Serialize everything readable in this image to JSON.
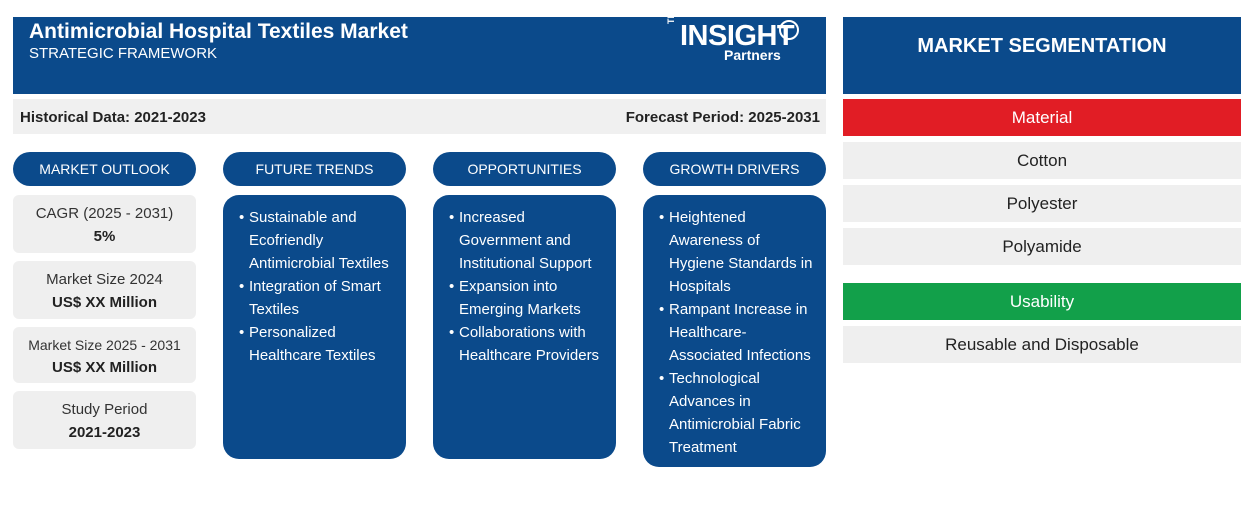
{
  "header": {
    "title": "Antimicrobial Hospital Textiles Market",
    "subtitle": "STRATEGIC FRAMEWORK",
    "logo": {
      "prefix": "The",
      "name": "INSIGHT",
      "suffix": "Partners"
    }
  },
  "period": {
    "historical": "Historical Data: 2021-2023",
    "forecast": "Forecast Period: 2025-2031"
  },
  "columns": {
    "outlook": {
      "label": "MARKET OUTLOOK",
      "stats": [
        {
          "label": "CAGR (2025 - 2031)",
          "value": "5%"
        },
        {
          "label": "Market Size 2024",
          "value": "US$ XX Million"
        },
        {
          "label": "Market Size 2025 - 2031",
          "value": "US$ XX Million"
        },
        {
          "label": "Study Period",
          "value": "2021-2023"
        }
      ]
    },
    "trends": {
      "label": "FUTURE TRENDS",
      "items": [
        "Sustainable and Ecofriendly Antimicrobial Textiles",
        "Integration of Smart Textiles",
        "Personalized Healthcare Textiles"
      ]
    },
    "opportunities": {
      "label": "OPPORTUNITIES",
      "items": [
        "Increased Government and Institutional Support",
        "Expansion into Emerging Markets",
        "Collaborations with Healthcare Providers"
      ]
    },
    "drivers": {
      "label": "GROWTH DRIVERS",
      "items": [
        "Heightened Awareness of Hygiene Standards in Hospitals",
        "Rampant Increase in Healthcare-Associated Infections",
        "Technological Advances in Antimicrobial Fabric Treatment"
      ]
    }
  },
  "segmentation": {
    "title": "MARKET SEGMENTATION",
    "material": {
      "label": "Material",
      "items": [
        "Cotton",
        "Polyester",
        "Polyamide"
      ]
    },
    "usability": {
      "label": "Usability",
      "items": [
        "Reusable and Disposable"
      ]
    }
  },
  "colors": {
    "primary": "#0b4a8b",
    "material": "#e11d25",
    "usability": "#12a04a",
    "panel": "#efefef"
  }
}
